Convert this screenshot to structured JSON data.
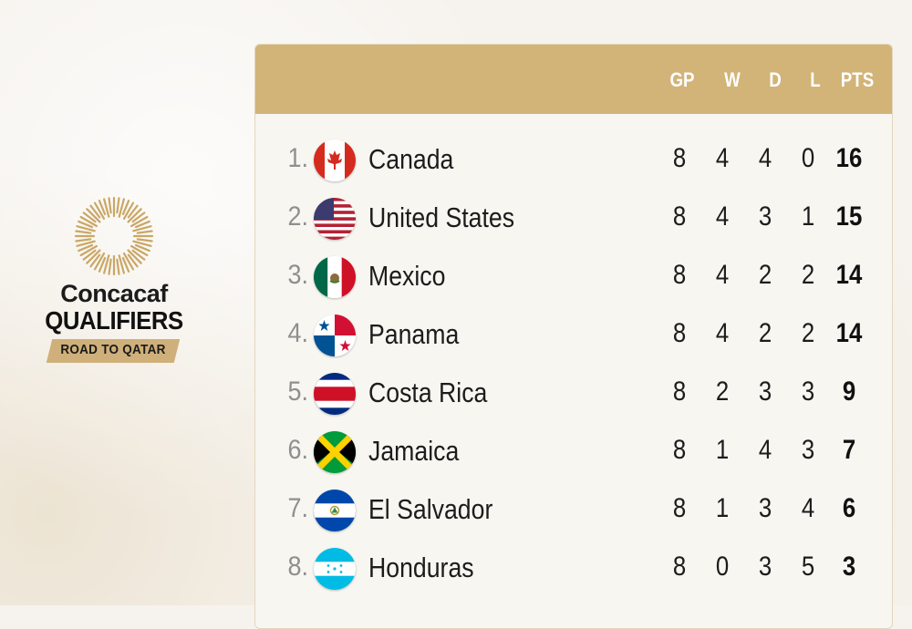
{
  "logo": {
    "line1": "Concacaf",
    "line2": "QUALIFIERS",
    "banner": "ROAD TO QATAR",
    "accent": "#cfb07a"
  },
  "table": {
    "header_color": "#d2b478",
    "headers": {
      "gp": "GP",
      "w": "W",
      "d": "D",
      "l": "L",
      "pts": "PTS"
    },
    "rows": [
      {
        "rank": "1.",
        "flag": "canada-flag-icon",
        "team": "Canada",
        "gp": "8",
        "w": "4",
        "d": "4",
        "l": "0",
        "pts": "16"
      },
      {
        "rank": "2.",
        "flag": "united-states-flag-icon",
        "team": "United States",
        "gp": "8",
        "w": "4",
        "d": "3",
        "l": "1",
        "pts": "15"
      },
      {
        "rank": "3.",
        "flag": "mexico-flag-icon",
        "team": "Mexico",
        "gp": "8",
        "w": "4",
        "d": "2",
        "l": "2",
        "pts": "14"
      },
      {
        "rank": "4.",
        "flag": "panama-flag-icon",
        "team": "Panama",
        "gp": "8",
        "w": "4",
        "d": "2",
        "l": "2",
        "pts": "14"
      },
      {
        "rank": "5.",
        "flag": "costa-rica-flag-icon",
        "team": "Costa Rica",
        "gp": "8",
        "w": "2",
        "d": "3",
        "l": "3",
        "pts": "9"
      },
      {
        "rank": "6.",
        "flag": "jamaica-flag-icon",
        "team": "Jamaica",
        "gp": "8",
        "w": "1",
        "d": "4",
        "l": "3",
        "pts": "7"
      },
      {
        "rank": "7.",
        "flag": "el-salvador-flag-icon",
        "team": "El Salvador",
        "gp": "8",
        "w": "1",
        "d": "3",
        "l": "4",
        "pts": "6"
      },
      {
        "rank": "8.",
        "flag": "honduras-flag-icon",
        "team": "Honduras",
        "gp": "8",
        "w": "0",
        "d": "3",
        "l": "5",
        "pts": "3"
      }
    ]
  }
}
